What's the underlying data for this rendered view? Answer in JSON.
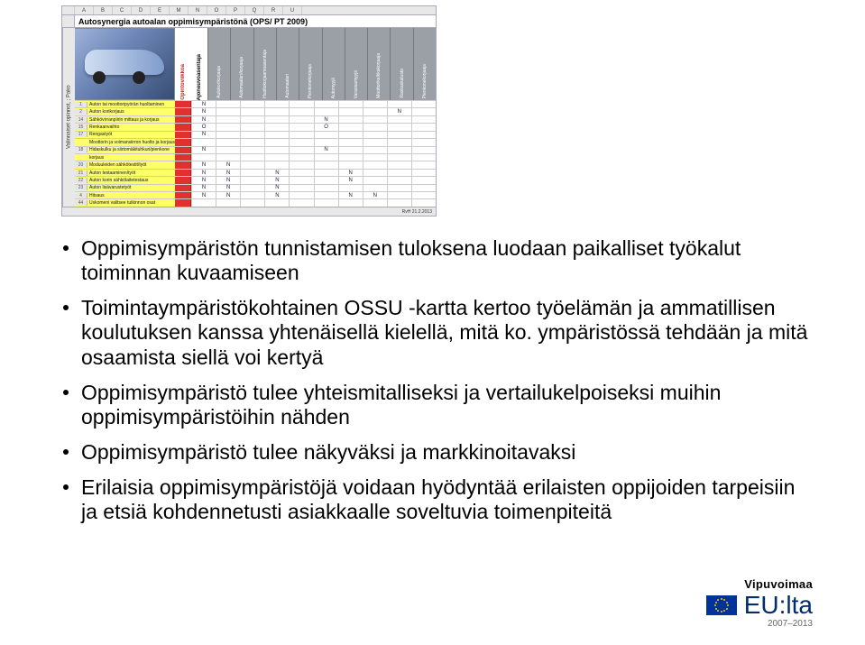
{
  "spreadsheet": {
    "column_letters": [
      "",
      "A",
      "B",
      "C",
      "D",
      "E",
      "M",
      "N",
      "O",
      "P",
      "Q",
      "R",
      "U"
    ],
    "title": "Autosynergia autoalan oppimisympäristönä (OPS/ PT 2009)",
    "side_label": "Valinnaiset opinnot, ; Pako",
    "red_header": "Opintoviikkoa",
    "black_header": "Ajoneuvoasentaja",
    "gray_headers": [
      "Autokorikorjaaja",
      "Automaalari/korjaaja",
      "Huoltokorjaamoasentaja",
      "Automaalari",
      "Pienkonekorjaaja",
      "Automyyjä",
      "Varaosamyyjä",
      "Moottorikelkkakorjaaja",
      "Raskaskalusto",
      "Pienkonekorjaaja"
    ],
    "tasks": [
      {
        "n": "1",
        "txt": "Auton tai moottoripyörän huoltaminen"
      },
      {
        "n": "2",
        "txt": "Auton korikorjaus"
      },
      {
        "n": "14",
        "txt": "Sähkövirranpiirin mittaus ja korjaus"
      },
      {
        "n": "15",
        "txt": "Renkaanvaihto"
      },
      {
        "n": "17",
        "txt": "Rengastyöt"
      },
      {
        "n": "",
        "txt": "Moottorin ja voimansiirron huolto ja korjaus"
      },
      {
        "n": "18",
        "txt": "Hidaskulku ja siirtomäkituhkuri/pienkone"
      },
      {
        "n": "",
        "txt": "korjaus"
      },
      {
        "n": "20",
        "txt": "Moduuleiden sähkötestit/työt"
      },
      {
        "n": "21",
        "txt": "Auton testaaminen/työt"
      },
      {
        "n": "22",
        "txt": "Auton korin sähkölaitetestaus"
      },
      {
        "n": "23",
        "txt": "Auton lisävarustetyöt"
      },
      {
        "n": "4",
        "txt": "Hitsaus"
      },
      {
        "n": "44",
        "txt": "Uskomeni valitsee tutkinnon osat"
      }
    ],
    "grid": [
      [
        "N",
        "",
        "",
        "",
        "",
        "",
        "",
        "",
        "",
        ""
      ],
      [
        "N",
        "",
        "",
        "",
        "",
        "",
        "",
        "",
        "N",
        ""
      ],
      [
        "N",
        "",
        "",
        "",
        "",
        "N",
        "",
        "",
        "",
        ""
      ],
      [
        "O",
        "",
        "",
        "",
        "",
        "O",
        "",
        "",
        "",
        ""
      ],
      [
        "N",
        "",
        "",
        "",
        "",
        "",
        "",
        "",
        "",
        ""
      ],
      [
        "",
        "",
        "",
        "",
        "",
        "",
        "",
        "",
        "",
        ""
      ],
      [
        "N",
        "",
        "",
        "",
        "",
        "N",
        "",
        "",
        "",
        ""
      ],
      [
        "",
        "",
        "",
        "",
        "",
        "",
        "",
        "",
        "",
        ""
      ],
      [
        "N",
        "N",
        "",
        "",
        "",
        "",
        "",
        "",
        "",
        ""
      ],
      [
        "N",
        "N",
        "",
        "N",
        "",
        "",
        "N",
        "",
        "",
        ""
      ],
      [
        "N",
        "N",
        "",
        "N",
        "",
        "",
        "N",
        "",
        "",
        ""
      ],
      [
        "N",
        "N",
        "",
        "N",
        "",
        "",
        "",
        "",
        "",
        ""
      ],
      [
        "N",
        "N",
        "",
        "N",
        "",
        "",
        "N",
        "N",
        "",
        ""
      ],
      [
        "",
        "",
        "",
        "",
        "",
        "",
        "",
        "",
        "",
        ""
      ]
    ],
    "footer_meta": "RvH  21.2.2013"
  },
  "bullets": [
    "Oppimisympäristön tunnistamisen tuloksena luodaan paikalliset työkalut toiminnan kuvaamiseen",
    "Toimintaympäristökohtainen OSSU -kartta kertoo työelämän ja ammatillisen koulutuksen kanssa yhtenäisellä kielellä, mitä ko. ympäristössä tehdään ja mitä osaamista siellä voi kertyä",
    "Oppimisympäristö tulee yhteismitalliseksi ja vertailukelpoiseksi muihin oppimisympäristöihin nähden",
    "Oppimisympäristö tulee näkyväksi ja markkinoitavaksi",
    "Erilaisia oppimisympäristöjä voidaan hyödyntää erilaisten oppijoiden tarpeisiin ja etsiä kohdennetusti asiakkaalle soveltuvia toimenpiteitä"
  ],
  "footer": {
    "vipu": "Vipuvoimaa",
    "eulta": "EU:lta",
    "years": "2007–2013",
    "flag_bg": "#003399",
    "star_color": "#ffcc00"
  },
  "colors": {
    "task_bg": "#ffff66",
    "red_col": "#e03030",
    "gray_hdr": "#9aa0a6"
  }
}
